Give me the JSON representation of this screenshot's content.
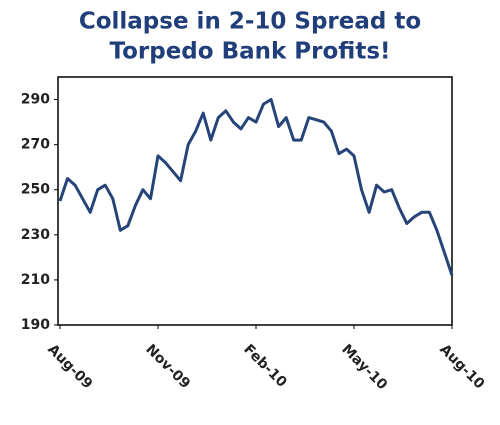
{
  "chart_data": {
    "type": "line",
    "title": [
      "Collapse in 2-10 Spread to",
      "Torpedo Bank Profits!"
    ],
    "categories": [
      "Aug-09",
      null,
      null,
      null,
      null,
      null,
      null,
      null,
      null,
      null,
      null,
      null,
      null,
      "Nov-09",
      null,
      null,
      null,
      null,
      null,
      null,
      null,
      null,
      null,
      null,
      null,
      null,
      "Feb-10",
      null,
      null,
      null,
      null,
      null,
      null,
      null,
      null,
      null,
      null,
      null,
      null,
      "May-10",
      null,
      null,
      null,
      null,
      null,
      null,
      null,
      null,
      null,
      null,
      null,
      null,
      "Aug-10"
    ],
    "values": [
      245,
      255,
      252,
      246,
      240,
      250,
      252,
      246,
      232,
      234,
      243,
      250,
      246,
      265,
      262,
      258,
      254,
      270,
      276,
      284,
      272,
      282,
      285,
      280,
      277,
      282,
      280,
      288,
      290,
      278,
      282,
      272,
      272,
      282,
      281,
      280,
      276,
      266,
      268,
      265,
      250,
      240,
      252,
      249,
      250,
      242,
      235,
      238,
      240,
      240,
      232,
      222,
      212
    ],
    "color": "#264478",
    "ylim": [
      190,
      300
    ],
    "yticks": [
      190,
      210,
      230,
      250,
      270,
      290
    ],
    "grid": false
  }
}
